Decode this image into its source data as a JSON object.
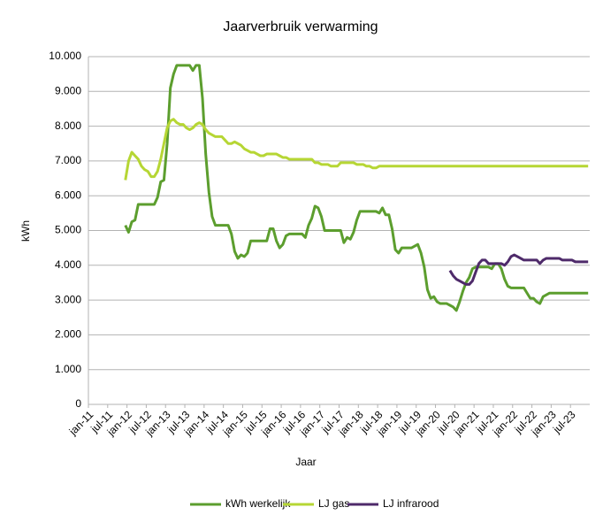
{
  "chart_data": {
    "type": "line",
    "title": "Jaarverbruik verwarming",
    "x_label": "Jaar",
    "y_label": "kWh",
    "categories": [
      "jan-11",
      null,
      null,
      null,
      null,
      null,
      "jul-11",
      null,
      null,
      null,
      null,
      null,
      "jan-12",
      null,
      null,
      null,
      null,
      null,
      "jul-12",
      null,
      null,
      null,
      null,
      null,
      "jan-13",
      null,
      null,
      null,
      null,
      null,
      "jul-13",
      null,
      null,
      null,
      null,
      null,
      "jan-14",
      null,
      null,
      null,
      null,
      null,
      "jul-14",
      null,
      null,
      null,
      null,
      null,
      "jan-15",
      null,
      null,
      null,
      null,
      null,
      "jul-15",
      null,
      null,
      null,
      null,
      null,
      "jan-16",
      null,
      null,
      null,
      null,
      null,
      "jul-16",
      null,
      null,
      null,
      null,
      null,
      "jan-17",
      null,
      null,
      null,
      null,
      null,
      "jul-17",
      null,
      null,
      null,
      null,
      null,
      "jan-18",
      null,
      null,
      null,
      null,
      null,
      "jul-18",
      null,
      null,
      null,
      null,
      null,
      "jan-19",
      null,
      null,
      null,
      null,
      null,
      "jul-19",
      null,
      null,
      null,
      null,
      null,
      "jan-20",
      null,
      null,
      null,
      null,
      null,
      "jul-20",
      null,
      null,
      null,
      null,
      null,
      "jan-21",
      null,
      null,
      null,
      null,
      null,
      "jul-21",
      null,
      null,
      null,
      null,
      null,
      "jan-22",
      null,
      null,
      null,
      null,
      null,
      "jul-22",
      null,
      null,
      null,
      null,
      null,
      "jan-23",
      null,
      null,
      null,
      null,
      null,
      "jul-23",
      null,
      null,
      null,
      null,
      null
    ],
    "series": [
      {
        "name": "kWh werkelijk",
        "color": "#5c9e2e",
        "values": [
          null,
          null,
          null,
          null,
          null,
          null,
          null,
          null,
          null,
          null,
          null,
          5150,
          4950,
          5250,
          5300,
          5750,
          5750,
          5750,
          5750,
          5750,
          5750,
          5950,
          6400,
          6450,
          7500,
          9100,
          9500,
          9750,
          9750,
          9750,
          9750,
          9750,
          9600,
          9750,
          9750,
          8800,
          7200,
          6100,
          5400,
          5150,
          5150,
          5150,
          5150,
          5150,
          4900,
          4400,
          4200,
          4300,
          4250,
          4350,
          4700,
          4700,
          4700,
          4700,
          4700,
          4700,
          5050,
          5050,
          4700,
          4500,
          4600,
          4850,
          4900,
          4900,
          4900,
          4900,
          4900,
          4800,
          5150,
          5350,
          5700,
          5650,
          5400,
          5000,
          5000,
          5000,
          5000,
          5000,
          5000,
          4650,
          4800,
          4750,
          4950,
          5300,
          5550,
          5550,
          5550,
          5550,
          5550,
          5550,
          5500,
          5650,
          5450,
          5450,
          5050,
          4450,
          4350,
          4500,
          4500,
          4500,
          4500,
          4550,
          4600,
          4350,
          3950,
          3300,
          3050,
          3100,
          2950,
          2900,
          2900,
          2900,
          2850,
          2800,
          2700,
          2950,
          3250,
          3500,
          3650,
          3900,
          3950,
          3950,
          3950,
          3950,
          3950,
          3900,
          4050,
          4050,
          3900,
          3600,
          3400,
          3350,
          3350,
          3350,
          3350,
          3350,
          3200,
          3050,
          3050,
          2950,
          2900,
          3100,
          3150,
          3200,
          3200,
          3200,
          3200,
          3200,
          3200,
          3200,
          3200,
          3200,
          3200,
          3200,
          3200,
          3200
        ]
      },
      {
        "name": "LJ gas",
        "color": "#b6d634",
        "values": [
          null,
          null,
          null,
          null,
          null,
          null,
          null,
          null,
          null,
          null,
          null,
          6450,
          7000,
          7250,
          7150,
          7050,
          6850,
          6750,
          6700,
          6550,
          6550,
          6700,
          7050,
          7500,
          7950,
          8150,
          8200,
          8100,
          8050,
          8050,
          7950,
          7900,
          7950,
          8050,
          8100,
          8050,
          7900,
          7800,
          7750,
          7700,
          7700,
          7700,
          7600,
          7500,
          7500,
          7550,
          7500,
          7450,
          7350,
          7300,
          7250,
          7250,
          7200,
          7150,
          7150,
          7200,
          7200,
          7200,
          7200,
          7150,
          7100,
          7100,
          7050,
          7050,
          7050,
          7050,
          7050,
          7050,
          7050,
          7050,
          6950,
          6950,
          6900,
          6900,
          6900,
          6850,
          6850,
          6850,
          6950,
          6950,
          6950,
          6950,
          6950,
          6900,
          6900,
          6900,
          6850,
          6850,
          6800,
          6800,
          6850,
          6850,
          6850,
          6850,
          6850,
          6850,
          6850,
          6850,
          6850,
          6850,
          6850,
          6850,
          6850,
          6850,
          6850,
          6850,
          6850,
          6850,
          6850,
          6850,
          6850,
          6850,
          6850,
          6850,
          6850,
          6850,
          6850,
          6850,
          6850,
          6850,
          6850,
          6850,
          6850,
          6850,
          6850,
          6850,
          6850,
          6850,
          6850,
          6850,
          6850,
          6850,
          6850,
          6850,
          6850,
          6850,
          6850,
          6850,
          6850,
          6850,
          6850,
          6850,
          6850,
          6850,
          6850,
          6850,
          6850,
          6850,
          6850,
          6850,
          6850,
          6850,
          6850,
          6850,
          6850,
          6850
        ]
      },
      {
        "name": "LJ infrarood",
        "color": "#4e2a6a",
        "values": [
          null,
          null,
          null,
          null,
          null,
          null,
          null,
          null,
          null,
          null,
          null,
          null,
          null,
          null,
          null,
          null,
          null,
          null,
          null,
          null,
          null,
          null,
          null,
          null,
          null,
          null,
          null,
          null,
          null,
          null,
          null,
          null,
          null,
          null,
          null,
          null,
          null,
          null,
          null,
          null,
          null,
          null,
          null,
          null,
          null,
          null,
          null,
          null,
          null,
          null,
          null,
          null,
          null,
          null,
          null,
          null,
          null,
          null,
          null,
          null,
          null,
          null,
          null,
          null,
          null,
          null,
          null,
          null,
          null,
          null,
          null,
          null,
          null,
          null,
          null,
          null,
          null,
          null,
          null,
          null,
          null,
          null,
          null,
          null,
          null,
          null,
          null,
          null,
          null,
          null,
          null,
          null,
          null,
          null,
          null,
          null,
          null,
          null,
          null,
          null,
          null,
          null,
          null,
          null,
          null,
          null,
          null,
          null,
          null,
          null,
          null,
          null,
          3850,
          3700,
          3600,
          3550,
          3500,
          3450,
          3450,
          3550,
          3800,
          4050,
          4150,
          4150,
          4050,
          4050,
          4050,
          4050,
          4050,
          4000,
          4100,
          4250,
          4300,
          4250,
          4200,
          4150,
          4150,
          4150,
          4150,
          4150,
          4050,
          4150,
          4200,
          4200,
          4200,
          4200,
          4200,
          4150,
          4150,
          4150,
          4150,
          4100,
          4100,
          4100,
          4100,
          4100
        ]
      }
    ],
    "ylim": [
      0,
      10000
    ],
    "yticks": [
      0,
      {
        "value": 1000,
        "label": "1.000"
      },
      {
        "value": 2000,
        "label": "2.000"
      },
      {
        "value": 3000,
        "label": "3.000"
      },
      {
        "value": 4000,
        "label": "4.000"
      },
      {
        "value": 5000,
        "label": "5.000"
      },
      {
        "value": 6000,
        "label": "6.000"
      },
      {
        "value": 7000,
        "label": "7.000"
      },
      {
        "value": 8000,
        "label": "8.000"
      },
      {
        "value": 9000,
        "label": "9.000"
      },
      {
        "value": 10000,
        "label": "10.000"
      }
    ],
    "grid": true,
    "legend": "bottom"
  }
}
